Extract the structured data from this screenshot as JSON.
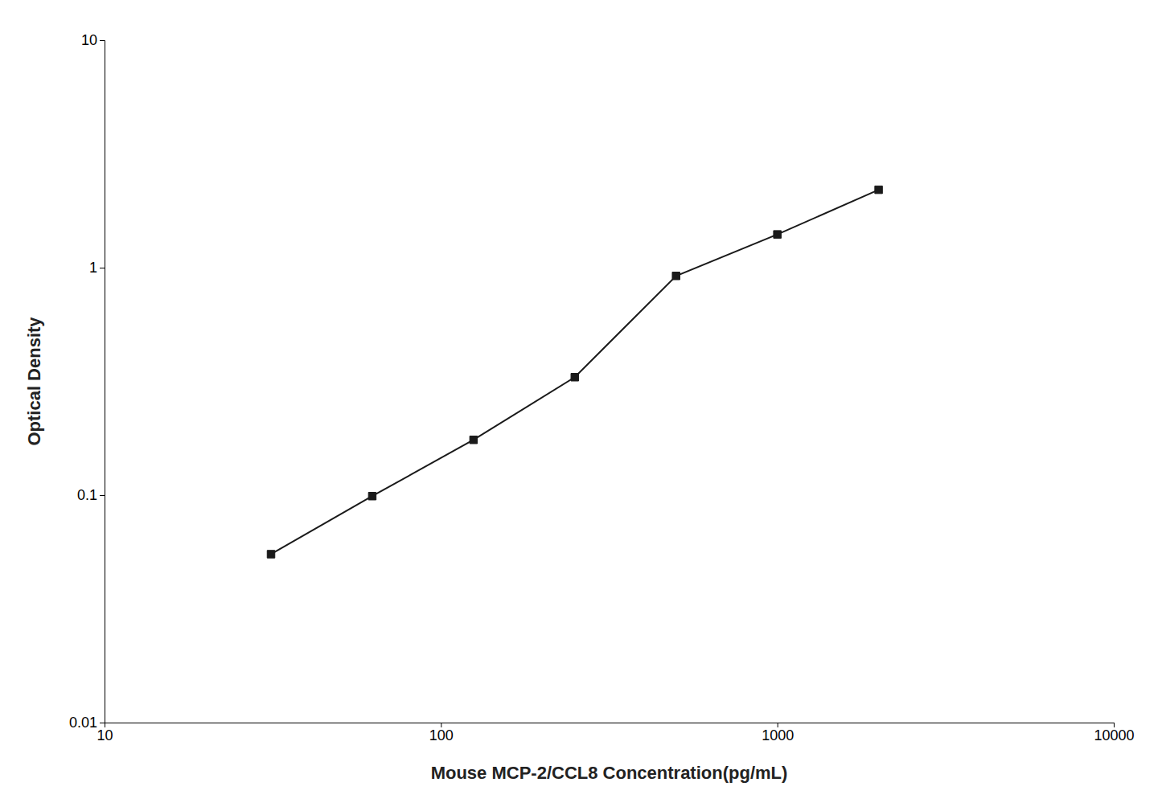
{
  "chart_data": {
    "type": "line",
    "x": [
      31.25,
      62.5,
      125,
      250,
      500,
      1000,
      2000
    ],
    "values": [
      0.055,
      0.099,
      0.175,
      0.33,
      0.92,
      1.4,
      2.2
    ],
    "xlabel": "Mouse MCP-2/CCL8 Concentration(pg/mL)",
    "ylabel": "Optical Density",
    "xlim": [
      10,
      10000
    ],
    "ylim": [
      0.01,
      10
    ],
    "xticks": [
      10,
      100,
      1000,
      10000
    ],
    "yticks": [
      0.01,
      0.1,
      1,
      10
    ],
    "log": true,
    "grid": false,
    "color": "#1a1a1a",
    "marker": "square",
    "line_style": "solid"
  }
}
